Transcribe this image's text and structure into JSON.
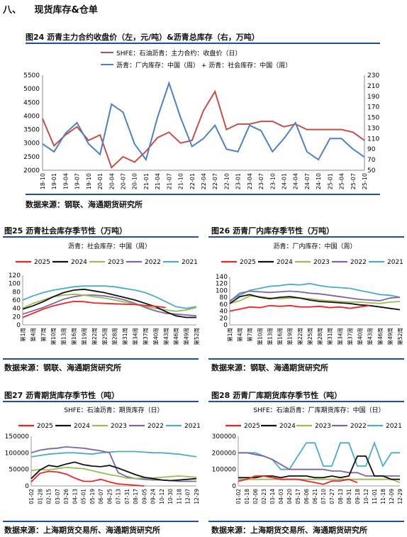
{
  "section": {
    "num": "八、",
    "title": "现货库存&仓单"
  },
  "colors": {
    "accent": "#1f4e9a",
    "red": "#e8262a",
    "black": "#111111",
    "green": "#9bbb59",
    "purple": "#8064a2",
    "cyan": "#4bacc6",
    "price_red": "#c0504d",
    "inv_blue": "#4f81bd"
  },
  "fig24": {
    "title": "图24  沥青主力合约收盘价（左，元/吨）&沥青总库存（右，万吨）",
    "source": "数据来源：钢联、海通期货研究所",
    "chart_data": {
      "type": "line",
      "legend": [
        "SHFE：石油沥青：主力合约：收盘价（日）",
        "沥青：厂内库存：中国（周）  + 沥青：社会库存：中国（周）"
      ],
      "x_ticks": [
        "18-10",
        "19-01",
        "19-04",
        "19-07",
        "19-10",
        "20-01",
        "20-04",
        "20-07",
        "20-10",
        "21-01",
        "21-04",
        "21-07",
        "21-10",
        "22-01",
        "22-04",
        "22-07",
        "22-10",
        "23-01",
        "23-04",
        "23-07",
        "23-10",
        "24-01",
        "24-04",
        "24-07",
        "24-10",
        "25-01",
        "25-04",
        "25-07",
        "25-10"
      ],
      "ylim_left": [
        2000,
        5500
      ],
      "yticks_left": [
        2000,
        2500,
        3000,
        3500,
        4000,
        4500,
        5000,
        5500
      ],
      "ylim_right": [
        50,
        230
      ],
      "yticks_right": [
        50,
        70,
        90,
        110,
        130,
        150,
        170,
        190,
        210,
        230
      ],
      "series": [
        {
          "name": "SHFE：石油沥青：主力合约：收盘价（日）",
          "axis": "left",
          "x": [
            0,
            1,
            2,
            3,
            4,
            5,
            6,
            7,
            8,
            9,
            10,
            11,
            12,
            13,
            14,
            15,
            16,
            17,
            18,
            19,
            20,
            21,
            22,
            23,
            24,
            25,
            26,
            27,
            28
          ],
          "values": [
            3900,
            2900,
            3300,
            3600,
            3100,
            3300,
            2100,
            2500,
            2300,
            2700,
            3200,
            3400,
            3000,
            3100,
            4200,
            4900,
            3500,
            3700,
            3700,
            3800,
            3800,
            3600,
            3700,
            3500,
            3500,
            3500,
            3500,
            3400,
            3100
          ]
        },
        {
          "name": "沥青：厂内库存：中国（周）  + 沥青：社会库存：中国（周）",
          "axis": "right",
          "x": [
            0,
            1,
            2,
            3,
            4,
            5,
            6,
            7,
            8,
            9,
            10,
            11,
            12,
            13,
            14,
            15,
            16,
            17,
            18,
            19,
            20,
            21,
            22,
            23,
            24,
            25,
            26,
            27,
            28
          ],
          "values": [
            100,
            85,
            120,
            140,
            100,
            80,
            175,
            160,
            100,
            70,
            150,
            215,
            150,
            95,
            110,
            135,
            90,
            85,
            135,
            125,
            85,
            110,
            140,
            85,
            70,
            110,
            110,
            90,
            75
          ]
        }
      ]
    }
  },
  "fig25": {
    "title": "图25  沥青社会库存季节性（万吨）",
    "source": "数据来源：钢联、海通期货研究所",
    "chart_data": {
      "type": "line",
      "title": "沥青：社会库存：中国（周）",
      "x_ticks": [
        "第1周",
        "第4周",
        "第7周",
        "第10周",
        "第13周",
        "第16周",
        "第19周",
        "第22周",
        "第25周",
        "第28周",
        "第31周",
        "第34周",
        "第37周",
        "第40周",
        "第43周",
        "第46周",
        "第49周",
        "第52周"
      ],
      "x": [
        1,
        4,
        7,
        10,
        13,
        16,
        19,
        22,
        25,
        28,
        31,
        34,
        37,
        40,
        43,
        46,
        49,
        52
      ],
      "ylim": [
        0,
        120
      ],
      "yticks": [
        0,
        20,
        40,
        60,
        80,
        100,
        120
      ],
      "series": [
        {
          "name": "2025",
          "values": [
            18,
            28,
            38,
            46,
            52,
            57,
            56,
            53,
            52,
            51,
            50,
            49,
            47,
            45,
            42,
            null,
            null,
            null
          ]
        },
        {
          "name": "2024",
          "values": [
            38,
            46,
            56,
            68,
            78,
            84,
            86,
            82,
            78,
            72,
            66,
            60,
            52,
            44,
            32,
            22,
            18,
            18
          ]
        },
        {
          "name": "2023",
          "values": [
            40,
            52,
            60,
            68,
            72,
            74,
            72,
            68,
            65,
            60,
            55,
            50,
            45,
            40,
            36,
            33,
            36,
            42
          ]
        },
        {
          "name": "2022",
          "values": [
            26,
            34,
            42,
            52,
            62,
            68,
            72,
            72,
            70,
            66,
            60,
            52,
            42,
            34,
            28,
            26,
            24,
            22
          ]
        },
        {
          "name": "2021",
          "values": [
            60,
            70,
            78,
            84,
            88,
            92,
            94,
            94,
            94,
            92,
            88,
            84,
            78,
            68,
            56,
            44,
            40,
            44
          ]
        }
      ]
    }
  },
  "fig26": {
    "title": "图26  沥青厂内库存季节性（万吨）",
    "source": "数据来源：钢联、海通期货研究所",
    "chart_data": {
      "type": "line",
      "title": "沥青：厂内库存：中国（周）",
      "x_ticks": [
        "第1周",
        "第4周",
        "第7周",
        "第10周",
        "第13周",
        "第16周",
        "第19周",
        "第22周",
        "第25周",
        "第28周",
        "第31周",
        "第34周",
        "第37周",
        "第40周",
        "第43周",
        "第46周",
        "第49周",
        "第52周"
      ],
      "x": [
        1,
        4,
        7,
        10,
        13,
        16,
        19,
        22,
        25,
        28,
        31,
        34,
        37,
        40,
        43,
        46,
        49,
        52
      ],
      "ylim": [
        0,
        140
      ],
      "yticks": [
        0,
        20,
        40,
        60,
        80,
        100,
        120,
        140
      ],
      "series": [
        {
          "name": "2025",
          "values": [
            40,
            46,
            52,
            50,
            56,
            54,
            56,
            52,
            52,
            54,
            50,
            52,
            48,
            52,
            56,
            null,
            null,
            null
          ]
        },
        {
          "name": "2024",
          "values": [
            62,
            82,
            88,
            80,
            76,
            80,
            82,
            78,
            72,
            68,
            66,
            64,
            62,
            58,
            56,
            52,
            48,
            44
          ]
        },
        {
          "name": "2023",
          "values": [
            62,
            70,
            84,
            82,
            78,
            76,
            78,
            78,
            76,
            72,
            70,
            68,
            66,
            66,
            64,
            62,
            66,
            68
          ]
        },
        {
          "name": "2022",
          "values": [
            68,
            92,
            98,
            96,
            94,
            96,
            98,
            96,
            92,
            90,
            86,
            82,
            78,
            74,
            72,
            70,
            78,
            80
          ]
        },
        {
          "name": "2021",
          "values": [
            70,
            86,
            100,
            106,
            112,
            114,
            118,
            116,
            120,
            114,
            110,
            108,
            106,
            100,
            94,
            88,
            86,
            80
          ]
        }
      ]
    }
  },
  "fig27": {
    "title": "图27  沥青期货库存季节性（吨）",
    "source": "数据来源：上海期货交易所、海通期货研究所",
    "chart_data": {
      "type": "line",
      "title": "SHFE：石油沥青：期货库存（日）",
      "x_ticks": [
        "01-02",
        "01-28",
        "02-15",
        "03-07",
        "03-26",
        "04-13",
        "05-01",
        "05-19",
        "06-07",
        "06-25",
        "07-13",
        "07-31",
        "08-17",
        "09-05",
        "09-24",
        "10-12",
        "10-30",
        "11-18",
        "12-07",
        "12-29"
      ],
      "ylim": [
        0,
        150000
      ],
      "yticks": [
        0,
        50000,
        100000,
        150000
      ],
      "series": [
        {
          "name": "2025",
          "values": [
            12000,
            38000,
            44000,
            42000,
            36000,
            24000,
            14000,
            14000,
            20000,
            12000,
            6000,
            4000,
            2000,
            0,
            null,
            null,
            null,
            null,
            null,
            null
          ]
        },
        {
          "name": "2024",
          "values": [
            22000,
            48000,
            62000,
            58000,
            66000,
            72000,
            64000,
            60000,
            58000,
            62000,
            54000,
            44000,
            34000,
            26000,
            22000,
            18000,
            16000,
            18000,
            20000,
            22000
          ]
        },
        {
          "name": "2023",
          "values": [
            46000,
            50000,
            48000,
            52000,
            56000,
            54000,
            52000,
            46000,
            40000,
            34000,
            30000,
            24000,
            22000,
            24000,
            24000,
            26000,
            28000,
            30000,
            28000,
            26000
          ]
        },
        {
          "name": "2022",
          "values": [
            100000,
            108000,
            112000,
            114000,
            118000,
            116000,
            114000,
            110000,
            106000,
            100000,
            40000,
            28000,
            22000,
            20000,
            18000,
            18000,
            16000,
            14000,
            14000,
            14000
          ]
        },
        {
          "name": "2021",
          "values": [
            88000,
            92000,
            96000,
            98000,
            100000,
            100000,
            98000,
            96000,
            100000,
            102000,
            104000,
            104000,
            104000,
            102000,
            100000,
            100000,
            98000,
            96000,
            92000,
            88000
          ]
        }
      ]
    }
  },
  "fig28": {
    "title": "图28  沥青厂库期货库存季节性（吨）",
    "source": "数据来源：上海期货交易所、海通期货研究所",
    "chart_data": {
      "type": "line",
      "title": "SHFE：石油沥青：厂库期货库存：中国（日）",
      "x_ticks": [
        "01-02",
        "01-18",
        "02-06",
        "02-23",
        "03-14",
        "04-03",
        "04-20",
        "05-17",
        "06-06",
        "06-21",
        "07-10",
        "07-27",
        "08-13",
        "08-31",
        "09-18",
        "10-12",
        "11-01",
        "11-18",
        "12-09",
        "12-29"
      ],
      "ylim": [
        0,
        300000
      ],
      "yticks": [
        0,
        100000,
        200000,
        300000
      ],
      "series": [
        {
          "name": "2025",
          "values": [
            28000,
            40000,
            60000,
            60000,
            50000,
            40000,
            40000,
            40000,
            30000,
            20000,
            10000,
            30000,
            30000,
            40000,
            20000,
            null,
            null,
            null,
            null,
            null
          ]
        },
        {
          "name": "2024",
          "values": [
            50000,
            50000,
            50000,
            60000,
            60000,
            50000,
            60000,
            60000,
            60000,
            50000,
            50000,
            60000,
            50000,
            60000,
            180000,
            180000,
            60000,
            60000,
            40000,
            40000
          ]
        },
        {
          "name": "2023",
          "values": [
            40000,
            40000,
            40000,
            40000,
            40000,
            40000,
            40000,
            40000,
            40000,
            40000,
            40000,
            40000,
            40000,
            40000,
            40000,
            40000,
            40000,
            40000,
            40000,
            20000
          ]
        },
        {
          "name": "2022",
          "values": [
            200000,
            200000,
            190000,
            180000,
            160000,
            130000,
            100000,
            100000,
            100000,
            100000,
            100000,
            90000,
            90000,
            80000,
            80000,
            60000,
            60000,
            60000,
            60000,
            60000
          ]
        },
        {
          "name": "2021",
          "values": [
            200000,
            200000,
            200000,
            180000,
            160000,
            100000,
            100000,
            180000,
            260000,
            260000,
            120000,
            120000,
            260000,
            260000,
            120000,
            120000,
            260000,
            120000,
            200000,
            200000
          ]
        }
      ]
    }
  }
}
